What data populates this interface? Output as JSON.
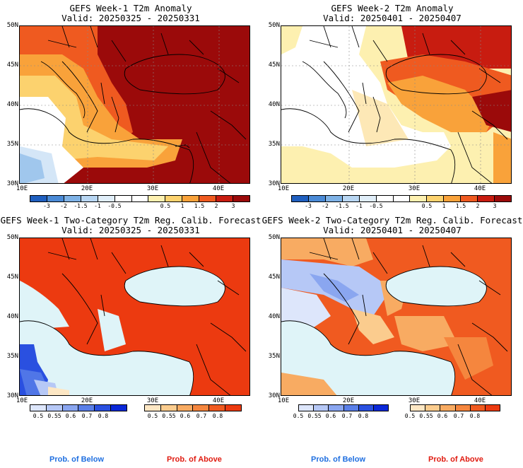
{
  "panels": [
    {
      "title": "GEFS Week-1 T2m Anomaly",
      "valid": "Valid: 20250325 - 20250331"
    },
    {
      "title": "GEFS Week-2 T2m Anomaly",
      "valid": "Valid: 20250401 - 20250407"
    },
    {
      "title": "GEFS Week-1 Two-Category T2m Reg. Calib. Forecast",
      "valid": "Valid: 20250325 - 20250331"
    },
    {
      "title": "GEFS Week-2 Two-Category T2m Reg. Calib. Forecast",
      "valid": "Valid: 20250401 - 20250407"
    }
  ],
  "lat_labels": [
    "50N",
    "45N",
    "40N",
    "35N",
    "30N"
  ],
  "lon_labels": [
    "10E",
    "20E",
    "30E",
    "40E"
  ],
  "anomaly_scale": {
    "ticks": [
      "-3",
      "-2",
      "-1.5",
      "-1",
      "-0.5",
      "0.5",
      "1",
      "1.5",
      "2",
      "3"
    ],
    "colors": [
      "#1f5fbf",
      "#4a8ad6",
      "#7eb2e6",
      "#b8d6f2",
      "#e0eef9",
      "#ffffff",
      "#ffffff",
      "#fdf0b0",
      "#fcd26e",
      "#f9a23a",
      "#ef5a20",
      "#c81c10",
      "#9b0a0a"
    ]
  },
  "prob_below": {
    "ticks": [
      "0.5",
      "0.55",
      "0.6",
      "0.7",
      "0.8"
    ],
    "colors": [
      "#dde6fb",
      "#b6c8f6",
      "#8aa6f0",
      "#5a7fe8",
      "#2a50e0",
      "#0a28d8"
    ],
    "label": "Prob. of Below"
  },
  "prob_above": {
    "ticks": [
      "0.5",
      "0.55",
      "0.6",
      "0.7",
      "0.8"
    ],
    "colors": [
      "#fde7c4",
      "#fbcc8e",
      "#f8ab62",
      "#f5863e",
      "#f05a20",
      "#ec3a10"
    ],
    "label": "Prob. of Above"
  }
}
